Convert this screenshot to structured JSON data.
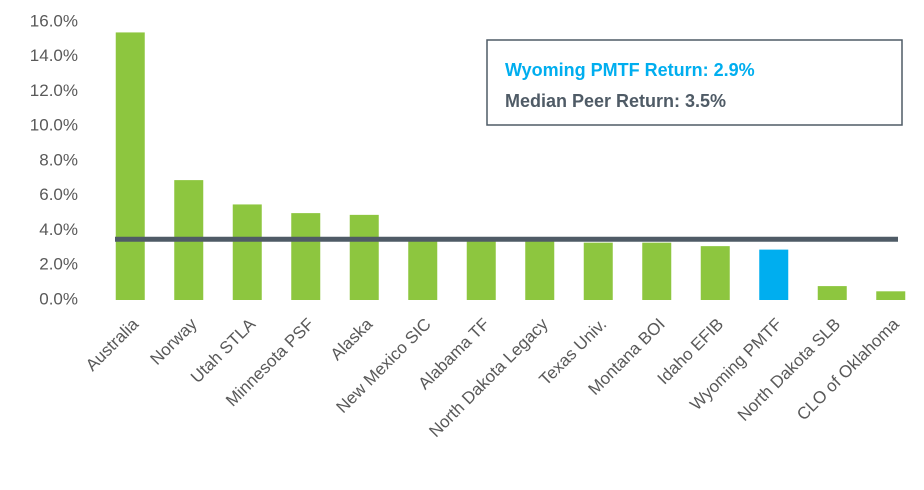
{
  "chart_data": {
    "type": "bar",
    "categories": [
      "Australia",
      "Norway",
      "Utah STLA",
      "Minnesota PSF",
      "Alaska",
      "New Mexico SIC",
      "Alabama TF",
      "North Dakota Legacy",
      "Texas Univ.",
      "Montana BOI",
      "Idaho EFIB",
      "Wyoming PMTF",
      "North Dakota SLB",
      "CLO of Oklahoma"
    ],
    "values": [
      15.4,
      6.9,
      5.5,
      5.0,
      4.9,
      3.5,
      3.5,
      3.5,
      3.3,
      3.3,
      3.1,
      2.9,
      0.8,
      0.5
    ],
    "colors": [
      "#8dc63f",
      "#8dc63f",
      "#8dc63f",
      "#8dc63f",
      "#8dc63f",
      "#8dc63f",
      "#8dc63f",
      "#8dc63f",
      "#8dc63f",
      "#8dc63f",
      "#8dc63f",
      "#00aeef",
      "#8dc63f",
      "#8dc63f"
    ],
    "ylim": [
      0,
      16
    ],
    "yticks": [
      {
        "value": 0,
        "label": "0.0%"
      },
      {
        "value": 2,
        "label": "2.0%"
      },
      {
        "value": 4,
        "label": "4.0%"
      },
      {
        "value": 6,
        "label": "6.0%"
      },
      {
        "value": 8,
        "label": "8.0%"
      },
      {
        "value": 10,
        "label": "10.0%"
      },
      {
        "value": 12,
        "label": "12.0%"
      },
      {
        "value": 14,
        "label": "14.0%"
      },
      {
        "value": 16,
        "label": "16.0%"
      }
    ],
    "reference_line": {
      "value": 3.5,
      "color": "#4f5b66"
    },
    "annotations": [
      {
        "text": "Wyoming PMTF Return: 2.9%",
        "color": "#00aeef"
      },
      {
        "text": "Median Peer Return: 3.5%",
        "color": "#4f5b66"
      }
    ]
  }
}
